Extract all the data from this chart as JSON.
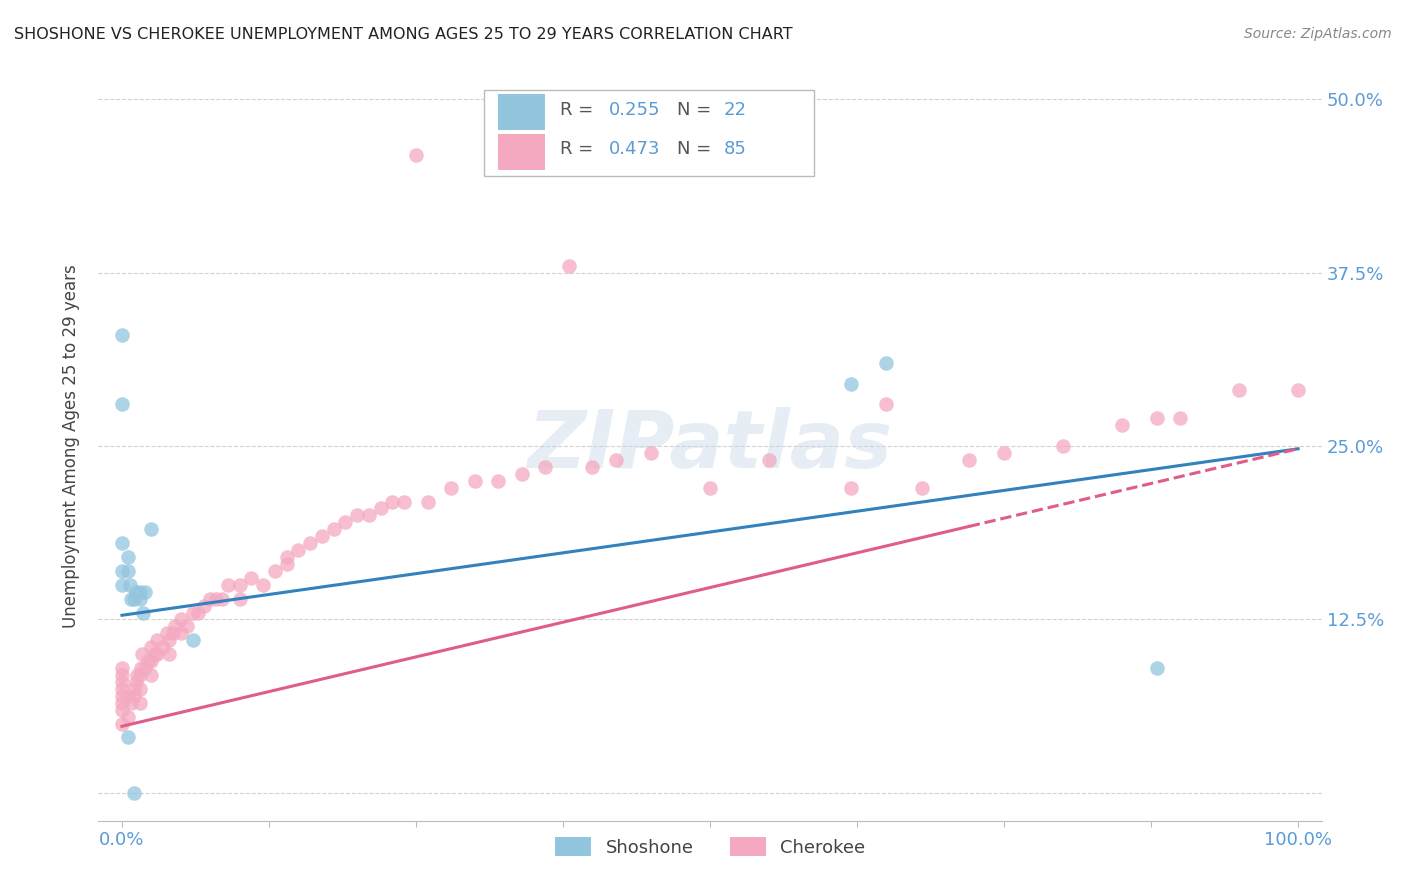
{
  "title": "SHOSHONE VS CHEROKEE UNEMPLOYMENT AMONG AGES 25 TO 29 YEARS CORRELATION CHART",
  "source": "Source: ZipAtlas.com",
  "ylabel": "Unemployment Among Ages 25 to 29 years",
  "xlim": [
    -0.02,
    1.02
  ],
  "ylim": [
    -0.02,
    0.52
  ],
  "yticks": [
    0.0,
    0.125,
    0.25,
    0.375,
    0.5
  ],
  "yticklabels": [
    "",
    "12.5%",
    "25.0%",
    "37.5%",
    "50.0%"
  ],
  "shoshone_color": "#92c5de",
  "cherokee_color": "#f4a9c0",
  "shoshone_line_color": "#3182bd",
  "cherokee_line_color": "#e05c8a",
  "shoshone_R": 0.255,
  "shoshone_N": 22,
  "cherokee_R": 0.473,
  "cherokee_N": 85,
  "watermark_text": "ZIPatlas",
  "background_color": "#ffffff",
  "grid_color": "#cccccc",
  "tick_color": "#5b9bd5",
  "shoshone_line_y0": 0.128,
  "shoshone_line_y1": 0.248,
  "cherokee_line_y0": 0.048,
  "cherokee_line_y1": 0.248,
  "shoshone_x": [
    0.0,
    0.0,
    0.0,
    0.0,
    0.0,
    0.005,
    0.005,
    0.007,
    0.008,
    0.01,
    0.012,
    0.015,
    0.015,
    0.018,
    0.02,
    0.025,
    0.06,
    0.62,
    0.65,
    0.88,
    0.005,
    0.01
  ],
  "shoshone_y": [
    0.33,
    0.28,
    0.18,
    0.16,
    0.15,
    0.17,
    0.16,
    0.15,
    0.14,
    0.14,
    0.145,
    0.145,
    0.14,
    0.13,
    0.145,
    0.19,
    0.11,
    0.295,
    0.31,
    0.09,
    0.04,
    0.0
  ],
  "cherokee_x": [
    0.0,
    0.0,
    0.0,
    0.0,
    0.0,
    0.0,
    0.0,
    0.0,
    0.005,
    0.005,
    0.008,
    0.01,
    0.01,
    0.012,
    0.013,
    0.015,
    0.015,
    0.015,
    0.016,
    0.017,
    0.02,
    0.022,
    0.025,
    0.025,
    0.025,
    0.028,
    0.03,
    0.03,
    0.035,
    0.038,
    0.04,
    0.04,
    0.043,
    0.045,
    0.05,
    0.05,
    0.055,
    0.06,
    0.065,
    0.07,
    0.075,
    0.08,
    0.085,
    0.09,
    0.1,
    0.1,
    0.11,
    0.12,
    0.13,
    0.14,
    0.14,
    0.15,
    0.16,
    0.17,
    0.18,
    0.19,
    0.2,
    0.21,
    0.22,
    0.23,
    0.24,
    0.25,
    0.26,
    0.28,
    0.3,
    0.32,
    0.34,
    0.36,
    0.38,
    0.4,
    0.42,
    0.45,
    0.5,
    0.55,
    0.62,
    0.65,
    0.68,
    0.72,
    0.75,
    0.8,
    0.85,
    0.88,
    0.9,
    0.95,
    1.0
  ],
  "cherokee_y": [
    0.05,
    0.06,
    0.065,
    0.07,
    0.075,
    0.08,
    0.085,
    0.09,
    0.055,
    0.07,
    0.065,
    0.07,
    0.075,
    0.08,
    0.085,
    0.065,
    0.075,
    0.085,
    0.09,
    0.1,
    0.09,
    0.095,
    0.085,
    0.095,
    0.105,
    0.1,
    0.1,
    0.11,
    0.105,
    0.115,
    0.1,
    0.11,
    0.115,
    0.12,
    0.115,
    0.125,
    0.12,
    0.13,
    0.13,
    0.135,
    0.14,
    0.14,
    0.14,
    0.15,
    0.14,
    0.15,
    0.155,
    0.15,
    0.16,
    0.165,
    0.17,
    0.175,
    0.18,
    0.185,
    0.19,
    0.195,
    0.2,
    0.2,
    0.205,
    0.21,
    0.21,
    0.46,
    0.21,
    0.22,
    0.225,
    0.225,
    0.23,
    0.235,
    0.38,
    0.235,
    0.24,
    0.245,
    0.22,
    0.24,
    0.22,
    0.28,
    0.22,
    0.24,
    0.245,
    0.25,
    0.265,
    0.27,
    0.27,
    0.29,
    0.29
  ]
}
